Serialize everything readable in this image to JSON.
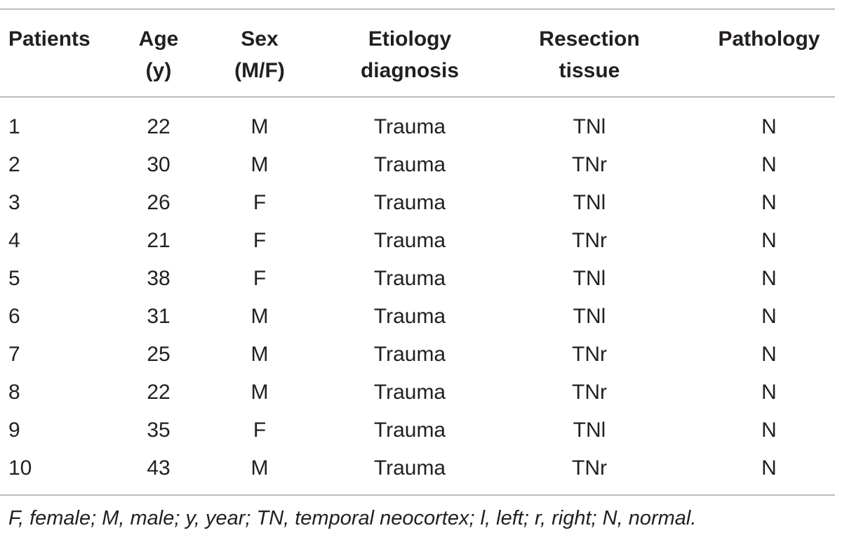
{
  "table": {
    "headers": [
      [
        "Patients"
      ],
      [
        "Age",
        "(y)"
      ],
      [
        "Sex",
        "(M/F)"
      ],
      [
        "Etiology",
        "diagnosis"
      ],
      [
        "Resection",
        "tissue"
      ],
      [
        "Pathology"
      ]
    ],
    "rows": [
      [
        "1",
        "22",
        "M",
        "Trauma",
        "TNl",
        "N"
      ],
      [
        "2",
        "30",
        "M",
        "Trauma",
        "TNr",
        "N"
      ],
      [
        "3",
        "26",
        "F",
        "Trauma",
        "TNl",
        "N"
      ],
      [
        "4",
        "21",
        "F",
        "Trauma",
        "TNr",
        "N"
      ],
      [
        "5",
        "38",
        "F",
        "Trauma",
        "TNl",
        "N"
      ],
      [
        "6",
        "31",
        "M",
        "Trauma",
        "TNl",
        "N"
      ],
      [
        "7",
        "25",
        "M",
        "Trauma",
        "TNr",
        "N"
      ],
      [
        "8",
        "22",
        "M",
        "Trauma",
        "TNr",
        "N"
      ],
      [
        "9",
        "35",
        "F",
        "Trauma",
        "TNl",
        "N"
      ],
      [
        "10",
        "43",
        "M",
        "Trauma",
        "TNr",
        "N"
      ]
    ],
    "footnote": "F, female; M, male; y, year; TN, temporal neocortex; l, left; r, right; N, normal."
  }
}
